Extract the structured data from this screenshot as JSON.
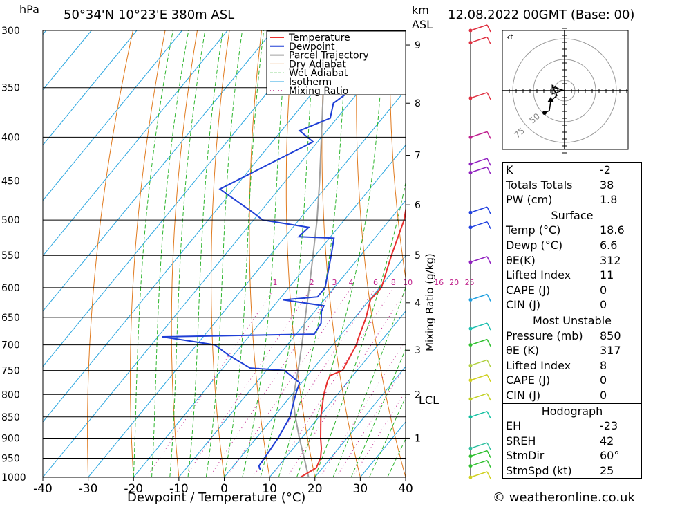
{
  "header": {
    "pressure_unit": "hPa",
    "location": "50°34'N  10°23'E  380m  ASL",
    "km_label": "km",
    "asl_label": "ASL",
    "datetime": "12.08.2022  00GMT  (Base: 00)"
  },
  "footer": {
    "x_axis_title": "Dewpoint / Temperature (°C)",
    "copyright": "© weatheronline.co.uk",
    "mixing_ratio_axis_title": "Mixing Ratio (g/kg)",
    "lcl_label": "LCL"
  },
  "chart_data": {
    "type": "skew-t",
    "x_ticks": [
      -40,
      -30,
      -20,
      -10,
      0,
      10,
      20,
      30,
      40
    ],
    "pressure_ticks": [
      300,
      350,
      400,
      450,
      500,
      550,
      600,
      650,
      700,
      750,
      800,
      850,
      900,
      950,
      1000
    ],
    "km_ticks": [
      {
        "label": "1",
        "p": 900
      },
      {
        "label": "2",
        "p": 800
      },
      {
        "label": "3",
        "p": 710
      },
      {
        "label": "4",
        "p": 625
      },
      {
        "label": "5",
        "p": 550
      },
      {
        "label": "6",
        "p": 480
      },
      {
        "label": "7",
        "p": 420
      },
      {
        "label": "8",
        "p": 365
      },
      {
        "label": "9",
        "p": 312
      }
    ],
    "mixing_ratio_labels": [
      "1",
      "2",
      "3",
      "4",
      "6",
      "8",
      "10",
      "16",
      "20",
      "25"
    ],
    "mixing_ratio_values": [
      1,
      2,
      3,
      4,
      6,
      8,
      10,
      16,
      20,
      25
    ],
    "legend": [
      "Temperature",
      "Dewpoint",
      "Parcel Trajectory",
      "Dry Adiabat",
      "Wet Adiabat",
      "Isotherm",
      "Mixing Ratio"
    ],
    "colors": {
      "temperature": "#e8312f",
      "dewpoint": "#1f3fd6",
      "parcel": "#a0a0a0",
      "dry_adiabat": "#e07a1e",
      "wet_adiabat": "#2db52d",
      "isotherm": "#2aa6e0",
      "mixing_ratio": "#c0208a"
    },
    "temperature": [
      {
        "p": 1000,
        "t": 16.8
      },
      {
        "p": 975,
        "t": 18.6
      },
      {
        "p": 950,
        "t": 17.8
      },
      {
        "p": 925,
        "t": 16.2
      },
      {
        "p": 900,
        "t": 14.2
      },
      {
        "p": 850,
        "t": 10.4
      },
      {
        "p": 800,
        "t": 7.0
      },
      {
        "p": 770,
        "t": 5.3
      },
      {
        "p": 760,
        "t": 5.0
      },
      {
        "p": 750,
        "t": 6.8
      },
      {
        "p": 700,
        "t": 5.2
      },
      {
        "p": 690,
        "t": 4.6
      },
      {
        "p": 650,
        "t": 2.4
      },
      {
        "p": 620,
        "t": 0.2
      },
      {
        "p": 600,
        "t": 0.4
      },
      {
        "p": 550,
        "t": -3.2
      },
      {
        "p": 500,
        "t": -6.8
      },
      {
        "p": 480,
        "t": -9.0
      },
      {
        "p": 450,
        "t": -12.0
      },
      {
        "p": 400,
        "t": -19.8
      },
      {
        "p": 390,
        "t": -19.8
      },
      {
        "p": 380,
        "t": -21.5
      },
      {
        "p": 350,
        "t": -26.0
      },
      {
        "p": 300,
        "t": -35.0
      }
    ],
    "dewpoint": [
      {
        "p": 980,
        "t": 6.6
      },
      {
        "p": 970,
        "t": 5.6
      },
      {
        "p": 950,
        "t": 5.4
      },
      {
        "p": 900,
        "t": 4.8
      },
      {
        "p": 850,
        "t": 3.6
      },
      {
        "p": 800,
        "t": 0.8
      },
      {
        "p": 775,
        "t": -0.5
      },
      {
        "p": 750,
        "t": -6.0
      },
      {
        "p": 745,
        "t": -14.0
      },
      {
        "p": 720,
        "t": -21.0
      },
      {
        "p": 700,
        "t": -26.0
      },
      {
        "p": 685,
        "t": -39.0
      },
      {
        "p": 680,
        "t": -6.0
      },
      {
        "p": 660,
        "t": -6.5
      },
      {
        "p": 640,
        "t": -8.5
      },
      {
        "p": 630,
        "t": -9.0
      },
      {
        "p": 620,
        "t": -19.0
      },
      {
        "p": 615,
        "t": -12.0
      },
      {
        "p": 600,
        "t": -12.0
      },
      {
        "p": 550,
        "t": -16.5
      },
      {
        "p": 525,
        "t": -19.0
      },
      {
        "p": 523,
        "t": -27.0
      },
      {
        "p": 510,
        "t": -26.5
      },
      {
        "p": 500,
        "t": -38.0
      },
      {
        "p": 490,
        "t": -41.5
      },
      {
        "p": 460,
        "t": -53.0
      },
      {
        "p": 405,
        "t": -41.0
      },
      {
        "p": 393,
        "t": -46.0
      },
      {
        "p": 380,
        "t": -41.5
      },
      {
        "p": 365,
        "t": -43.5
      },
      {
        "p": 345,
        "t": -41.0
      },
      {
        "p": 320,
        "t": -38.0
      },
      {
        "p": 300,
        "t": -50.0
      }
    ],
    "parcel": [
      {
        "p": 1000,
        "t": 18.6
      },
      {
        "p": 950,
        "t": 14.2
      },
      {
        "p": 900,
        "t": 9.5
      },
      {
        "p": 850,
        "t": 4.8
      },
      {
        "p": 810,
        "t": 1.0
      },
      {
        "p": 750,
        "t": -3.0
      },
      {
        "p": 700,
        "t": -6.8
      },
      {
        "p": 650,
        "t": -11.0
      },
      {
        "p": 600,
        "t": -15.5
      },
      {
        "p": 550,
        "t": -20.5
      },
      {
        "p": 500,
        "t": -26.0
      },
      {
        "p": 450,
        "t": -32.5
      },
      {
        "p": 400,
        "t": -40.0
      },
      {
        "p": 350,
        "t": -48.5
      },
      {
        "p": 300,
        "t": -58.0
      }
    ],
    "wind_profile_colors": [
      {
        "p": 1000,
        "color": "#d0d020"
      },
      {
        "p": 970,
        "color": "#30c030"
      },
      {
        "p": 945,
        "color": "#30c030"
      },
      {
        "p": 925,
        "color": "#30c0a0"
      },
      {
        "p": 850,
        "color": "#10c0a0"
      },
      {
        "p": 810,
        "color": "#c0d020"
      },
      {
        "p": 770,
        "color": "#d0d020"
      },
      {
        "p": 740,
        "color": "#b0d040"
      },
      {
        "p": 700,
        "color": "#30c030"
      },
      {
        "p": 670,
        "color": "#20c0b0"
      },
      {
        "p": 620,
        "color": "#20a0e0"
      },
      {
        "p": 560,
        "color": "#9020c0"
      },
      {
        "p": 510,
        "color": "#2040e0"
      },
      {
        "p": 490,
        "color": "#2040e0"
      },
      {
        "p": 440,
        "color": "#9020c0"
      },
      {
        "p": 430,
        "color": "#9020c0"
      },
      {
        "p": 400,
        "color": "#c02090"
      },
      {
        "p": 360,
        "color": "#e03040"
      },
      {
        "p": 310,
        "color": "#e03040"
      },
      {
        "p": 300,
        "color": "#e03040"
      }
    ]
  },
  "hodograph": {
    "unit": "kt",
    "ring_labels": [
      "75",
      "50"
    ]
  },
  "indices": {
    "rows": [
      {
        "label": "K",
        "value": "-2"
      },
      {
        "label": "Totals Totals",
        "value": "38"
      },
      {
        "label": "PW (cm)",
        "value": "1.8"
      }
    ],
    "surface": {
      "title": "Surface",
      "rows": [
        {
          "label": "Temp (°C)",
          "value": "18.6"
        },
        {
          "label": "Dewp (°C)",
          "value": "6.6"
        },
        {
          "label": "θE(K)",
          "value": "312"
        },
        {
          "label": "Lifted Index",
          "value": "11"
        },
        {
          "label": "CAPE (J)",
          "value": "0"
        },
        {
          "label": "CIN (J)",
          "value": "0"
        }
      ]
    },
    "most_unstable": {
      "title": "Most Unstable",
      "rows": [
        {
          "label": "Pressure (mb)",
          "value": "850"
        },
        {
          "label": "θE (K)",
          "value": "317"
        },
        {
          "label": "Lifted Index",
          "value": "8"
        },
        {
          "label": "CAPE (J)",
          "value": "0"
        },
        {
          "label": "CIN (J)",
          "value": "0"
        }
      ]
    },
    "hodograph_box": {
      "title": "Hodograph",
      "rows": [
        {
          "label": "EH",
          "value": "-23"
        },
        {
          "label": "SREH",
          "value": "42"
        },
        {
          "label": "StmDir",
          "value": "60°"
        },
        {
          "label": "StmSpd (kt)",
          "value": "25"
        }
      ]
    }
  }
}
